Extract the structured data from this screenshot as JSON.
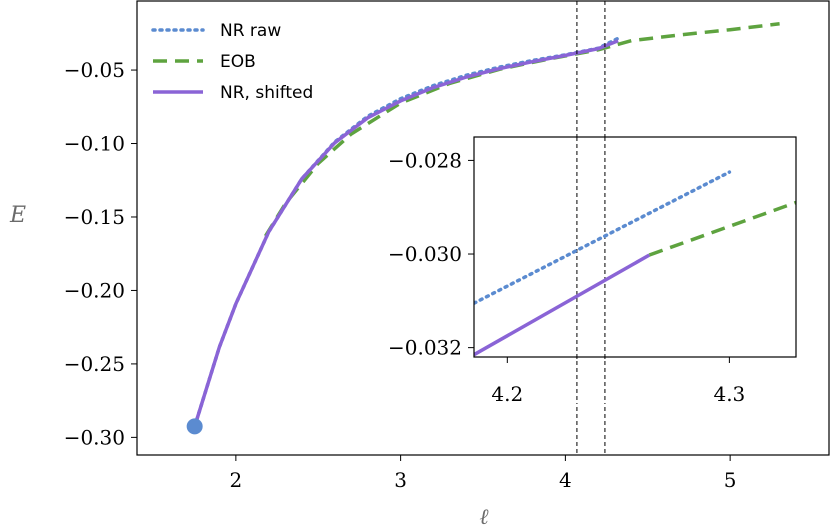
{
  "chart_data": {
    "type": "line",
    "xlabel": "ℓ",
    "ylabel": "E",
    "xlim": [
      1.4,
      5.6
    ],
    "ylim": [
      -0.312,
      -0.003
    ],
    "xticks": [
      2,
      3,
      4,
      5
    ],
    "xtick_labels": [
      "2",
      "3",
      "4",
      "5"
    ],
    "yticks": [
      -0.3,
      -0.25,
      -0.2,
      -0.15,
      -0.1,
      -0.05
    ],
    "ytick_labels": [
      "−0.30",
      "−0.25",
      "−0.20",
      "−0.15",
      "−0.10",
      "−0.05"
    ],
    "vlines": [
      4.07,
      4.24
    ],
    "legend_position": "top-left",
    "colors": {
      "nr_raw": "#5b8bd0",
      "eob": "#5ea33f",
      "nr_shifted": "#8a64d6"
    },
    "series": [
      {
        "name": "NR raw",
        "style": "dotted",
        "x": [
          1.75,
          1.9,
          2.0,
          2.2,
          2.4,
          2.6,
          2.8,
          3.0,
          3.2,
          3.4,
          3.6,
          3.8,
          4.0,
          4.2,
          4.32
        ],
        "y": [
          -0.2925,
          -0.2385,
          -0.209,
          -0.16,
          -0.124,
          -0.099,
          -0.0815,
          -0.0695,
          -0.0605,
          -0.0535,
          -0.048,
          -0.0435,
          -0.0396,
          -0.0351,
          -0.0284
        ]
      },
      {
        "name": "EOB",
        "style": "dashed",
        "x": [
          2.18,
          2.3,
          2.5,
          2.7,
          3.0,
          3.3,
          3.6,
          3.9,
          4.2,
          4.4,
          4.7,
          5.0,
          5.3
        ],
        "y": [
          -0.163,
          -0.141,
          -0.1135,
          -0.0935,
          -0.0725,
          -0.059,
          -0.0495,
          -0.0425,
          -0.0362,
          -0.03,
          -0.026,
          -0.0225,
          -0.0185
        ]
      },
      {
        "name": "NR, shifted",
        "style": "solid",
        "x": [
          1.75,
          1.9,
          2.0,
          2.2,
          2.4,
          2.6,
          2.8,
          3.0,
          3.2,
          3.4,
          3.6,
          3.8,
          4.0,
          4.2,
          4.32
        ],
        "y": [
          -0.2925,
          -0.2385,
          -0.209,
          -0.16,
          -0.124,
          -0.0995,
          -0.0825,
          -0.071,
          -0.0618,
          -0.0547,
          -0.049,
          -0.0443,
          -0.04,
          -0.0354,
          -0.03
        ]
      }
    ],
    "markers": [
      {
        "x": 1.75,
        "y": -0.2925,
        "color": "#5b8bd0"
      }
    ],
    "inset": {
      "xlim": [
        4.185,
        4.33
      ],
      "ylim": [
        -0.0322,
        -0.0275
      ],
      "xticks": [
        4.2,
        4.3
      ],
      "xtick_labels": [
        "4.2",
        "4.3"
      ],
      "yticks": [
        -0.032,
        -0.03,
        -0.028
      ],
      "ytick_labels": [
        "−0.032",
        "−0.030",
        "−0.028"
      ],
      "series": [
        {
          "name": "NR raw",
          "style": "dotted",
          "x": [
            4.185,
            4.3
          ],
          "y": [
            -0.03105,
            -0.02825
          ]
        },
        {
          "name": "NR, shifted",
          "style": "solid",
          "x": [
            4.185,
            4.264
          ],
          "y": [
            -0.03215,
            -0.03002
          ]
        },
        {
          "name": "EOB",
          "style": "dashed",
          "x": [
            4.264,
            4.33
          ],
          "y": [
            -0.03002,
            -0.0289
          ]
        }
      ]
    }
  }
}
